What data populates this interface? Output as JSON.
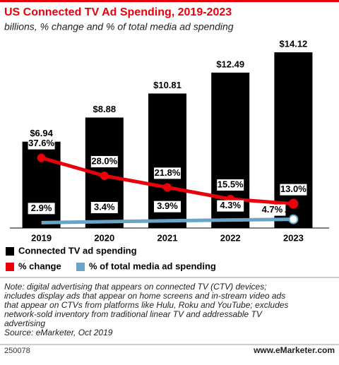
{
  "chart_data": {
    "type": "bar",
    "title": "US Connected TV Ad Spending, 2019-2023",
    "subtitle": "billions, % change and % of total media ad spending",
    "categories": [
      "2019",
      "2020",
      "2021",
      "2022",
      "2023"
    ],
    "series": [
      {
        "name": "Connected TV ad spending",
        "type": "bar",
        "color": "#000000",
        "values": [
          6.94,
          8.88,
          10.81,
          12.49,
          14.12
        ],
        "value_labels": [
          "$6.94",
          "$8.88",
          "$10.81",
          "$12.49",
          "$14.12"
        ]
      },
      {
        "name": "% change",
        "type": "line",
        "axis": "y2",
        "color": "#e8000b",
        "values": [
          37.6,
          28.0,
          21.8,
          15.5,
          13.0
        ],
        "value_labels": [
          "37.6%",
          "28.0%",
          "21.8%",
          "15.5%",
          "13.0%"
        ]
      },
      {
        "name": "% of total media ad spending",
        "type": "line",
        "axis": "y2",
        "color": "#6aa5c8",
        "values": [
          2.9,
          3.4,
          3.9,
          4.3,
          4.7
        ],
        "value_labels": [
          "2.9%",
          "3.4%",
          "3.9%",
          "4.3%",
          "4.7%"
        ]
      }
    ],
    "ylim": [
      0,
      15
    ],
    "y2lim": [
      0,
      100
    ],
    "note": [
      "Note: digital advertising that appears on connected TV (CTV) devices;",
      "includes display ads that appear on home screens and in-stream video ads",
      "that appear on CTVs from platforms like Hulu, Roku and YouTube; excludes",
      "network-sold inventory from traditional linear TV and addressable TV",
      "advertising"
    ],
    "source": "Source: eMarketer, Oct 2019",
    "id": "250078",
    "website": "www.eMarketer.com"
  }
}
